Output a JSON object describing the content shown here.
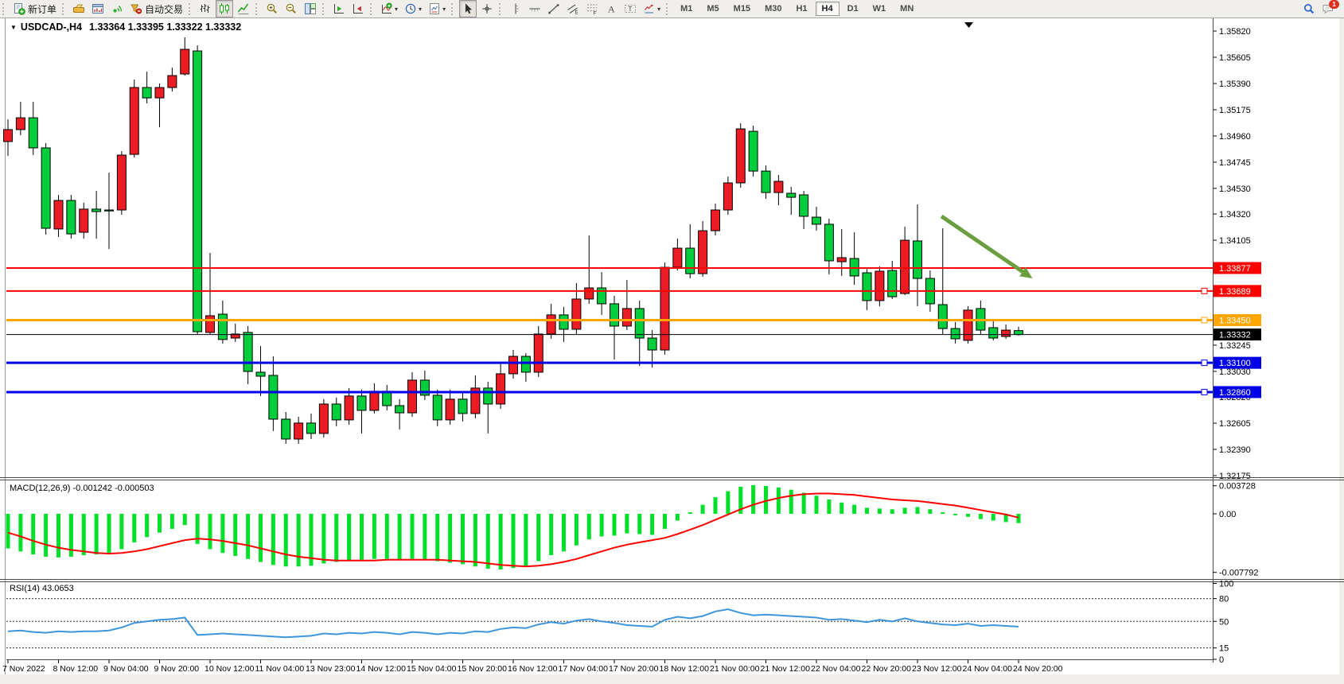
{
  "toolbar": {
    "groups": [
      {
        "items": [
          {
            "name": "new-order-button",
            "icon": "new-order",
            "label": "新订单"
          }
        ]
      },
      {
        "items": [
          {
            "name": "market-watch-button",
            "icon": "gold"
          },
          {
            "name": "chart-window-button",
            "icon": "chart-window"
          },
          {
            "name": "signal-button",
            "icon": "signal"
          },
          {
            "name": "autotrade-button",
            "icon": "autotrade",
            "label": "自动交易"
          }
        ]
      },
      {
        "items": [
          {
            "name": "bar-chart-button",
            "icon": "bar-chart"
          },
          {
            "name": "candlestick-chart-button",
            "icon": "candlestick",
            "pressed": true
          },
          {
            "name": "line-chart-button",
            "icon": "line-chart"
          }
        ]
      },
      {
        "items": [
          {
            "name": "zoom-in-button",
            "icon": "zoom-in"
          },
          {
            "name": "zoom-out-button",
            "icon": "zoom-out"
          },
          {
            "name": "tile-windows-button",
            "icon": "tiles"
          }
        ]
      },
      {
        "items": [
          {
            "name": "auto-scroll-button",
            "icon": "autoscroll"
          },
          {
            "name": "chart-shift-button",
            "icon": "chart-shift"
          }
        ]
      },
      {
        "items": [
          {
            "name": "indicators-button",
            "icon": "indicators",
            "dropdown": true
          },
          {
            "name": "periods-button",
            "icon": "clock",
            "dropdown": true
          },
          {
            "name": "templates-button",
            "icon": "template",
            "dropdown": true
          }
        ]
      },
      {
        "items": [
          {
            "name": "cursor-button",
            "icon": "cursor",
            "pressed": true
          },
          {
            "name": "crosshair-button",
            "icon": "crosshair"
          }
        ]
      },
      {
        "items": [
          {
            "name": "vertical-line-button",
            "icon": "vline"
          },
          {
            "name": "horizontal-line-button",
            "icon": "hline"
          },
          {
            "name": "trendline-button",
            "icon": "trendline"
          },
          {
            "name": "equidistant-channel-button",
            "icon": "channel"
          },
          {
            "name": "fibonacci-button",
            "icon": "fibo"
          },
          {
            "name": "text-button",
            "icon": "text-a"
          },
          {
            "name": "text-label-button",
            "icon": "text-label"
          },
          {
            "name": "arrows-button",
            "icon": "shapes",
            "dropdown": true
          }
        ]
      }
    ],
    "timeframes": [
      "M1",
      "M5",
      "M15",
      "M30",
      "H1",
      "H4",
      "D1",
      "W1",
      "MN"
    ],
    "active_timeframe": "H4",
    "right_items": [
      {
        "name": "search-button",
        "icon": "search"
      },
      {
        "name": "chat-button",
        "icon": "chat",
        "badge": "1"
      }
    ],
    "chat_badge": "1"
  },
  "chart": {
    "title_symbol": "USDCAD-,H4",
    "title_ohlc": "1.33364 1.33395 1.33322 1.33332",
    "macd_label": "MACD(12,26,9)",
    "macd_values": "-0.001242 -0.000503",
    "rsi_label": "RSI(14)",
    "rsi_value": "43.0653"
  },
  "chart_data": {
    "type": "candlestick",
    "symbol": "USDCAD",
    "timeframe": "H4",
    "up_color": "#EC1C24",
    "down_color": "#00CE3C",
    "x_labels": [
      "7 Nov 2022",
      "8 Nov 12:00",
      "9 Nov 04:00",
      "9 Nov 20:00",
      "10 Nov 12:00",
      "11 Nov 04:00",
      "13 Nov 23:00",
      "14 Nov 12:00",
      "15 Nov 04:00",
      "15 Nov 20:00",
      "16 Nov 12:00",
      "17 Nov 04:00",
      "17 Nov 20:00",
      "18 Nov 12:00",
      "21 Nov 00:00",
      "21 Nov 12:00",
      "22 Nov 04:00",
      "22 Nov 20:00",
      "23 Nov 12:00",
      "24 Nov 04:00",
      "24 Nov 20:00"
    ],
    "ylim": [
      1.32162,
      1.35892
    ],
    "y_ticks": [
      "1.35820",
      "1.35605",
      "1.35390",
      "1.35175",
      "1.34960",
      "1.34745",
      "1.34530",
      "1.34320",
      "1.34105",
      "1.33890",
      "1.33675",
      "1.33460",
      "1.33245",
      "1.33030",
      "1.32820",
      "1.32605",
      "1.32390",
      "1.32175"
    ],
    "candles": [
      [
        1.34914,
        1.35096,
        1.34796,
        1.35012
      ],
      [
        1.35012,
        1.3524,
        1.34966,
        1.35109
      ],
      [
        1.35109,
        1.3524,
        1.34803,
        1.34862
      ],
      [
        1.34862,
        1.34901,
        1.34151,
        1.34203
      ],
      [
        1.34197,
        1.34477,
        1.34131,
        1.34431
      ],
      [
        1.34431,
        1.34477,
        1.34118,
        1.34157
      ],
      [
        1.3417,
        1.34412,
        1.34118,
        1.3436
      ],
      [
        1.3436,
        1.34509,
        1.34118,
        1.3434
      ],
      [
        1.34353,
        1.34659,
        1.34033,
        1.34347
      ],
      [
        1.34353,
        1.34836,
        1.34314,
        1.34803
      ],
      [
        1.34809,
        1.35422,
        1.34783,
        1.35357
      ],
      [
        1.35357,
        1.35487,
        1.35227,
        1.35272
      ],
      [
        1.35272,
        1.3539,
        1.35031,
        1.35357
      ],
      [
        1.35357,
        1.3552,
        1.35324,
        1.35455
      ],
      [
        1.35468,
        1.35768,
        1.35455,
        1.3567
      ],
      [
        1.35657,
        1.35703,
        1.33336,
        1.33355
      ],
      [
        1.33349,
        1.34001,
        1.33336,
        1.33486
      ],
      [
        1.33499,
        1.3361,
        1.33258,
        1.33291
      ],
      [
        1.33303,
        1.33421,
        1.33271,
        1.33336
      ],
      [
        1.33349,
        1.33401,
        1.32925,
        1.33029
      ],
      [
        1.33023,
        1.33238,
        1.32828,
        1.3299
      ],
      [
        1.32997,
        1.33153,
        1.32541,
        1.32638
      ],
      [
        1.32638,
        1.32697,
        1.32436,
        1.32475
      ],
      [
        1.32475,
        1.32658,
        1.32436,
        1.32606
      ],
      [
        1.32606,
        1.32684,
        1.32475,
        1.32521
      ],
      [
        1.32521,
        1.32802,
        1.32488,
        1.32762
      ],
      [
        1.32762,
        1.32815,
        1.3258,
        1.32632
      ],
      [
        1.32632,
        1.32893,
        1.32593,
        1.32828
      ],
      [
        1.32828,
        1.3288,
        1.32521,
        1.3271
      ],
      [
        1.3271,
        1.32932,
        1.32684,
        1.32867
      ],
      [
        1.32867,
        1.32919,
        1.3271,
        1.32749
      ],
      [
        1.32749,
        1.32802,
        1.32553,
        1.3269
      ],
      [
        1.3269,
        1.33023,
        1.32658,
        1.32958
      ],
      [
        1.32958,
        1.33036,
        1.32795,
        1.32834
      ],
      [
        1.32834,
        1.3288,
        1.3258,
        1.32632
      ],
      [
        1.32632,
        1.3288,
        1.32593,
        1.32802
      ],
      [
        1.32802,
        1.32867,
        1.32619,
        1.32684
      ],
      [
        1.32684,
        1.32997,
        1.32645,
        1.32893
      ],
      [
        1.32893,
        1.32945,
        1.32521,
        1.32762
      ],
      [
        1.32762,
        1.33101,
        1.32723,
        1.3301
      ],
      [
        1.3301,
        1.33205,
        1.32971,
        1.33153
      ],
      [
        1.33153,
        1.33179,
        1.32945,
        1.33023
      ],
      [
        1.33023,
        1.33401,
        1.32984,
        1.33336
      ],
      [
        1.33336,
        1.33584,
        1.33297,
        1.33493
      ],
      [
        1.33493,
        1.33558,
        1.33271,
        1.33375
      ],
      [
        1.33375,
        1.33753,
        1.33336,
        1.33623
      ],
      [
        1.33623,
        1.34144,
        1.33584,
        1.33714
      ],
      [
        1.33714,
        1.33844,
        1.33493,
        1.33584
      ],
      [
        1.33584,
        1.33649,
        1.33127,
        1.33401
      ],
      [
        1.33401,
        1.33779,
        1.33368,
        1.33545
      ],
      [
        1.33545,
        1.3361,
        1.33075,
        1.33303
      ],
      [
        1.33303,
        1.33368,
        1.33062,
        1.33205
      ],
      [
        1.33205,
        1.33923,
        1.33166,
        1.33883
      ],
      [
        1.33883,
        1.34118,
        1.33857,
        1.3404
      ],
      [
        1.3404,
        1.34236,
        1.33792,
        1.33831
      ],
      [
        1.33831,
        1.34262,
        1.33805,
        1.34183
      ],
      [
        1.34183,
        1.34405,
        1.34144,
        1.34353
      ],
      [
        1.34353,
        1.34627,
        1.34314,
        1.34575
      ],
      [
        1.34575,
        1.35064,
        1.34536,
        1.35018
      ],
      [
        1.34998,
        1.35044,
        1.34627,
        1.34672
      ],
      [
        1.34672,
        1.34718,
        1.34444,
        1.34496
      ],
      [
        1.34496,
        1.3464,
        1.34392,
        1.34588
      ],
      [
        1.3449,
        1.34542,
        1.34314,
        1.34457
      ],
      [
        1.34477,
        1.34509,
        1.34197,
        1.34301
      ],
      [
        1.34294,
        1.34379,
        1.34183,
        1.34236
      ],
      [
        1.34236,
        1.34281,
        1.33825,
        1.33936
      ],
      [
        1.33929,
        1.34197,
        1.33812,
        1.33962
      ],
      [
        1.33955,
        1.3417,
        1.3374,
        1.33812
      ],
      [
        1.33838,
        1.3387,
        1.33532,
        1.3361
      ],
      [
        1.3361,
        1.3389,
        1.33564,
        1.33851
      ],
      [
        1.33857,
        1.33936,
        1.33623,
        1.33642
      ],
      [
        1.33668,
        1.34216,
        1.33655,
        1.34105
      ],
      [
        1.34099,
        1.34399,
        1.33564,
        1.33792
      ],
      [
        1.33792,
        1.33857,
        1.33519,
        1.33584
      ],
      [
        1.33577,
        1.34203,
        1.33336,
        1.33381
      ],
      [
        1.33381,
        1.33434,
        1.33258,
        1.33297
      ],
      [
        1.33284,
        1.33564,
        1.33258,
        1.33532
      ],
      [
        1.33545,
        1.3361,
        1.33336,
        1.33368
      ],
      [
        1.33388,
        1.3344,
        1.33284,
        1.33303
      ],
      [
        1.33316,
        1.33414,
        1.33297,
        1.33368
      ],
      [
        1.33364,
        1.33395,
        1.33322,
        1.33332
      ]
    ],
    "hlines": [
      {
        "price": 1.33877,
        "label": "1.33877",
        "color": "#FF0000",
        "width": 2,
        "handle": false
      },
      {
        "price": 1.33689,
        "label": "1.33689",
        "color": "#FF0000",
        "width": 2,
        "handle": true
      },
      {
        "price": 1.3345,
        "label": "1.33450",
        "color": "#FFA700",
        "width": 3,
        "handle": true
      },
      {
        "price": 1.331,
        "label": "1.33100",
        "color": "#0000E6",
        "width": 3,
        "handle": true
      },
      {
        "price": 1.3286,
        "label": "1.32860",
        "color": "#0000E6",
        "width": 3,
        "handle": true
      }
    ],
    "current_price": {
      "value": 1.33332,
      "label": "1.33332"
    },
    "arrow_annotation": {
      "x1_bar": 73.9,
      "y1_price": 1.34301,
      "x2_bar": 81.1,
      "y2_price": 1.33792,
      "color": "#6B9E3F"
    },
    "macd": {
      "label": "MACD(12,26,9)",
      "value_main": -0.001242,
      "value_signal": -0.000503,
      "ylim": [
        -0.008562,
        0.004228
      ],
      "ticks": [
        {
          "v": 0.003728,
          "label": "0.003728"
        },
        {
          "v": 0,
          "label": "0.00"
        },
        {
          "v": -0.007792,
          "label": "-0.007792"
        }
      ],
      "hist_color": "#00E028",
      "signal_color": "#FF0000",
      "histogram": [
        -0.0046,
        -0.005,
        -0.0054,
        -0.0057,
        -0.0058,
        -0.0057,
        -0.0055,
        -0.0054,
        -0.0052,
        -0.0047,
        -0.0038,
        -0.0031,
        -0.0025,
        -0.002,
        -0.0015,
        -0.004,
        -0.0047,
        -0.0052,
        -0.0056,
        -0.006,
        -0.0064,
        -0.0068,
        -0.007,
        -0.007,
        -0.0069,
        -0.0066,
        -0.0064,
        -0.0062,
        -0.0061,
        -0.006,
        -0.006,
        -0.0062,
        -0.006,
        -0.0061,
        -0.0063,
        -0.0065,
        -0.0067,
        -0.007,
        -0.0073,
        -0.0074,
        -0.0072,
        -0.007,
        -0.0063,
        -0.0055,
        -0.005,
        -0.0042,
        -0.0034,
        -0.003,
        -0.0029,
        -0.0026,
        -0.0027,
        -0.0028,
        -0.002,
        -0.0009,
        0.0002,
        0.0012,
        0.0022,
        0.003,
        0.0036,
        0.0038,
        0.0037,
        0.0035,
        0.0032,
        0.0028,
        0.0024,
        0.0019,
        0.0015,
        0.0012,
        0.0008,
        0.0007,
        0.0006,
        0.0008,
        0.0009,
        0.0006,
        0.0002,
        -0.0002,
        -0.0004,
        -0.0007,
        -0.0009,
        -0.0011,
        -0.001242
      ],
      "signal": [
        -0.0025,
        -0.003,
        -0.0036,
        -0.0041,
        -0.0045,
        -0.0048,
        -0.005,
        -0.0052,
        -0.0053,
        -0.0052,
        -0.005,
        -0.0047,
        -0.0043,
        -0.0039,
        -0.0035,
        -0.0033,
        -0.0034,
        -0.0036,
        -0.0039,
        -0.0042,
        -0.0046,
        -0.005,
        -0.0054,
        -0.0057,
        -0.0059,
        -0.0061,
        -0.0062,
        -0.0062,
        -0.0062,
        -0.0062,
        -0.0061,
        -0.0061,
        -0.0061,
        -0.0061,
        -0.0061,
        -0.0062,
        -0.0063,
        -0.0064,
        -0.0066,
        -0.0068,
        -0.0069,
        -0.007,
        -0.0069,
        -0.0067,
        -0.0064,
        -0.006,
        -0.0055,
        -0.005,
        -0.0045,
        -0.0041,
        -0.0038,
        -0.0035,
        -0.0032,
        -0.0027,
        -0.0021,
        -0.0015,
        -0.0008,
        -0.0001,
        0.0006,
        0.0012,
        0.0017,
        0.0021,
        0.0024,
        0.0026,
        0.0027,
        0.0027,
        0.0026,
        0.0025,
        0.0023,
        0.0021,
        0.0019,
        0.0018,
        0.0017,
        0.0015,
        0.0013,
        0.0011,
        0.0008,
        0.0005,
        0.0002,
        -0.0001,
        -0.000503
      ]
    },
    "rsi": {
      "label": "RSI(14)",
      "current": 43.0653,
      "ylim": [
        0,
        100
      ],
      "levels": [
        80,
        50,
        15
      ],
      "ticks": [
        {
          "v": 100,
          "label": "100"
        },
        {
          "v": 80,
          "label": "80"
        },
        {
          "v": 50,
          "label": "50"
        },
        {
          "v": 15,
          "label": "15"
        },
        {
          "v": 0,
          "label": "0"
        }
      ],
      "color": "#3D95DB",
      "values": [
        37,
        38,
        36,
        35,
        37,
        36,
        37,
        37,
        38,
        42,
        48,
        50,
        52,
        53,
        55,
        32,
        33,
        34,
        33,
        32,
        31,
        30,
        29,
        30,
        31,
        34,
        33,
        35,
        34,
        36,
        35,
        33,
        36,
        35,
        33,
        35,
        34,
        37,
        36,
        40,
        42,
        41,
        46,
        49,
        47,
        51,
        53,
        50,
        48,
        45,
        44,
        43,
        52,
        56,
        54,
        57,
        63,
        66,
        61,
        58,
        59,
        58,
        57,
        56,
        55,
        52,
        53,
        51,
        49,
        52,
        50,
        54,
        50,
        48,
        46,
        45,
        47,
        44,
        45,
        44,
        43.07
      ]
    }
  }
}
